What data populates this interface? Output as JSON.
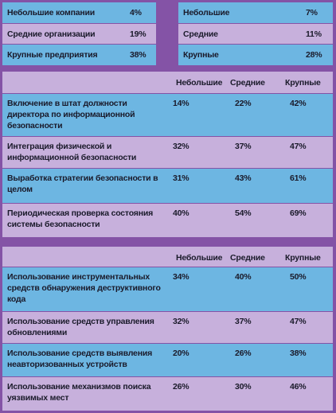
{
  "top_left": {
    "rows": [
      [
        "Небольшие компании",
        "4%"
      ],
      [
        "Средние организации",
        "19%"
      ],
      [
        "Крупные предприятия",
        "38%"
      ]
    ]
  },
  "top_right": {
    "rows": [
      [
        "Небольшие",
        "7%"
      ],
      [
        "Средние",
        "11%"
      ],
      [
        "Крупные",
        "28%"
      ]
    ]
  },
  "table1": {
    "header": [
      "Небольшие",
      "Средние",
      "Крупные"
    ],
    "rows": [
      [
        "Включение в штат должности директора по информационной безопасности",
        "14%",
        "22%",
        "42%"
      ],
      [
        "Интеграция физической и информационной безопасности",
        "32%",
        "37%",
        "47%"
      ],
      [
        "Выработка стратегии безопасности в целом",
        "31%",
        "43%",
        "61%"
      ],
      [
        "Периодическая проверка состояния системы безопасности",
        "40%",
        "54%",
        "69%"
      ]
    ]
  },
  "table2": {
    "header": [
      "Небольшие",
      "Средние",
      "Крупные"
    ],
    "rows": [
      [
        "Использование инструментальных средств обнаружения деструктивного кода",
        "34%",
        "40%",
        "50%"
      ],
      [
        "Использование средств управления обновлениями",
        "32%",
        "37%",
        "47%"
      ],
      [
        "Использование средств выявления неавторизованных устройств",
        "20%",
        "26%",
        "38%"
      ],
      [
        "Использование механизмов поиска уязвимых мест",
        "26%",
        "30%",
        "46%"
      ]
    ]
  }
}
